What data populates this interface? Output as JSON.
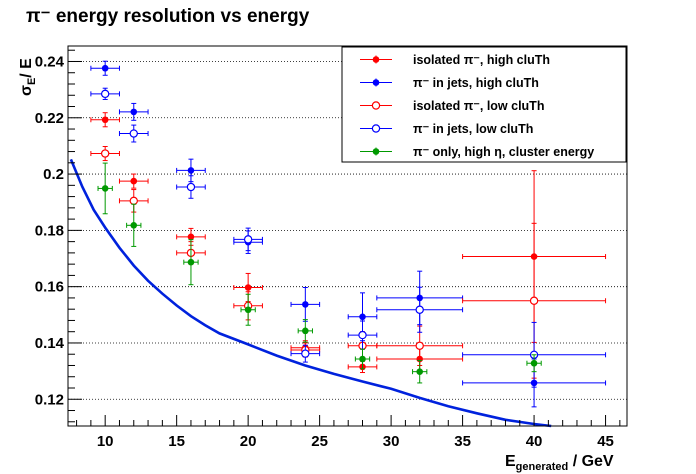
{
  "chart_data": {
    "type": "scatter",
    "title": "π⁻ energy resolution vs energy",
    "xlabel": {
      "main": "E",
      "sub": "generated",
      "rest": " / GeV"
    },
    "ylabel": {
      "main": "σ",
      "sub": "E",
      "rest": "/ E"
    },
    "xlim": [
      7.4,
      46.5
    ],
    "ylim": [
      0.1105,
      0.2455
    ],
    "xticks": [
      10,
      15,
      20,
      25,
      30,
      35,
      40,
      45
    ],
    "yticks": [
      0.12,
      0.14,
      0.16,
      0.18,
      0.2,
      0.22,
      0.24
    ],
    "ytick_labels": [
      "0.12",
      "0.14",
      "0.16",
      "0.18",
      "0.2",
      "0.22",
      "0.24"
    ],
    "grid": {
      "x": false,
      "y": true
    },
    "legend_position": "top-right",
    "colors": {
      "red": "#ff0000",
      "blue": "#0000ff",
      "green": "#009900",
      "curve": "#0022dd"
    },
    "series": [
      {
        "name": "isolated π⁻, high cluTh",
        "color": "#ff0000",
        "marker": "filled",
        "points": [
          {
            "x": 10,
            "y": 0.2193,
            "xerr": 1,
            "yerr": 0.0025
          },
          {
            "x": 12,
            "y": 0.1975,
            "xerr": 1,
            "yerr": 0.0025
          },
          {
            "x": 16,
            "y": 0.1777,
            "xerr": 1,
            "yerr": 0.003
          },
          {
            "x": 20,
            "y": 0.1597,
            "xerr": 1,
            "yerr": 0.005
          },
          {
            "x": 24,
            "y": 0.1383,
            "xerr": 1,
            "yerr": 0.0025
          },
          {
            "x": 28,
            "y": 0.1315,
            "xerr": 1,
            "yerr": 0.002
          },
          {
            "x": 32,
            "y": 0.1343,
            "xerr": 3,
            "yerr": 0.004
          },
          {
            "x": 40,
            "y": 0.1707,
            "xerr": 5,
            "yerr": 0.0305
          }
        ]
      },
      {
        "name": "π⁻ in jets, high cluTh",
        "color": "#0000ff",
        "marker": "filled",
        "points": [
          {
            "x": 10,
            "y": 0.2376,
            "xerr": 1,
            "yerr": 0.0025
          },
          {
            "x": 12,
            "y": 0.2221,
            "xerr": 1,
            "yerr": 0.003
          },
          {
            "x": 16,
            "y": 0.2013,
            "xerr": 1,
            "yerr": 0.004
          },
          {
            "x": 20,
            "y": 0.1758,
            "xerr": 1,
            "yerr": 0.004
          },
          {
            "x": 24,
            "y": 0.1537,
            "xerr": 1,
            "yerr": 0.006
          },
          {
            "x": 28,
            "y": 0.1493,
            "xerr": 1,
            "yerr": 0.0085
          },
          {
            "x": 32,
            "y": 0.156,
            "xerr": 3,
            "yerr": 0.0095
          },
          {
            "x": 40,
            "y": 0.1258,
            "xerr": 5,
            "yerr": 0.0085
          }
        ]
      },
      {
        "name": "isolated π⁻, low cluTh",
        "color": "#ff0000",
        "marker": "open",
        "points": [
          {
            "x": 10,
            "y": 0.2073,
            "xerr": 1,
            "yerr": 0.0025
          },
          {
            "x": 12,
            "y": 0.1905,
            "xerr": 1,
            "yerr": 0.004
          },
          {
            "x": 16,
            "y": 0.172,
            "xerr": 1,
            "yerr": 0.004
          },
          {
            "x": 20,
            "y": 0.1532,
            "xerr": 1,
            "yerr": 0.005
          },
          {
            "x": 24,
            "y": 0.1375,
            "xerr": 1,
            "yerr": 0.0025
          },
          {
            "x": 28,
            "y": 0.139,
            "xerr": 1,
            "yerr": 0.005
          },
          {
            "x": 32,
            "y": 0.139,
            "xerr": 3,
            "yerr": 0.007
          },
          {
            "x": 40,
            "y": 0.155,
            "xerr": 5,
            "yerr": 0.0275
          }
        ]
      },
      {
        "name": "π⁻ in jets, low cluTh",
        "color": "#0000ff",
        "marker": "open",
        "points": [
          {
            "x": 10,
            "y": 0.2285,
            "xerr": 1,
            "yerr": 0.002
          },
          {
            "x": 12,
            "y": 0.2144,
            "xerr": 1,
            "yerr": 0.003
          },
          {
            "x": 16,
            "y": 0.1954,
            "xerr": 1,
            "yerr": 0.004
          },
          {
            "x": 20,
            "y": 0.1768,
            "xerr": 1,
            "yerr": 0.004
          },
          {
            "x": 24,
            "y": 0.1362,
            "xerr": 1,
            "yerr": 0.003
          },
          {
            "x": 28,
            "y": 0.1428,
            "xerr": 1,
            "yerr": 0.005
          },
          {
            "x": 32,
            "y": 0.1518,
            "xerr": 3,
            "yerr": 0.008
          },
          {
            "x": 40,
            "y": 0.1358,
            "xerr": 5,
            "yerr": 0.0115
          }
        ]
      },
      {
        "name": "π⁻ only, high η, cluster energy",
        "color": "#009900",
        "marker": "filled",
        "points": [
          {
            "x": 10,
            "y": 0.1949,
            "xerr": 0.5,
            "yerr": 0.009
          },
          {
            "x": 12,
            "y": 0.1818,
            "xerr": 0.5,
            "yerr": 0.0075
          },
          {
            "x": 16,
            "y": 0.1687,
            "xerr": 0.5,
            "yerr": 0.008
          },
          {
            "x": 20,
            "y": 0.1518,
            "xerr": 0.5,
            "yerr": 0.0055
          },
          {
            "x": 24,
            "y": 0.1443,
            "xerr": 0.5,
            "yerr": 0.004
          },
          {
            "x": 28,
            "y": 0.1343,
            "xerr": 0.5,
            "yerr": 0.0035
          },
          {
            "x": 32,
            "y": 0.1298,
            "xerr": 0.5,
            "yerr": 0.004
          },
          {
            "x": 40,
            "y": 0.1328,
            "xerr": 0.5,
            "yerr": 0.003
          }
        ]
      }
    ],
    "curve": {
      "color": "#0022dd",
      "points": [
        {
          "x": 7.6,
          "y": 0.2052
        },
        {
          "x": 8.4,
          "y": 0.1955
        },
        {
          "x": 9.2,
          "y": 0.1873
        },
        {
          "x": 10,
          "y": 0.181
        },
        {
          "x": 11,
          "y": 0.1738
        },
        {
          "x": 12,
          "y": 0.1675
        },
        {
          "x": 13,
          "y": 0.1621
        },
        {
          "x": 14,
          "y": 0.1575
        },
        {
          "x": 15,
          "y": 0.1533
        },
        {
          "x": 16,
          "y": 0.1495
        },
        {
          "x": 17,
          "y": 0.1463
        },
        {
          "x": 18,
          "y": 0.1434
        },
        {
          "x": 20,
          "y": 0.1395
        },
        {
          "x": 22,
          "y": 0.1355
        },
        {
          "x": 24,
          "y": 0.132
        },
        {
          "x": 26,
          "y": 0.129
        },
        {
          "x": 28,
          "y": 0.1263
        },
        {
          "x": 30,
          "y": 0.1237
        },
        {
          "x": 32,
          "y": 0.1205
        },
        {
          "x": 34,
          "y": 0.1175
        },
        {
          "x": 36,
          "y": 0.115
        },
        {
          "x": 38,
          "y": 0.1127
        },
        {
          "x": 40,
          "y": 0.1112
        },
        {
          "x": 41.2,
          "y": 0.1105
        }
      ]
    }
  }
}
